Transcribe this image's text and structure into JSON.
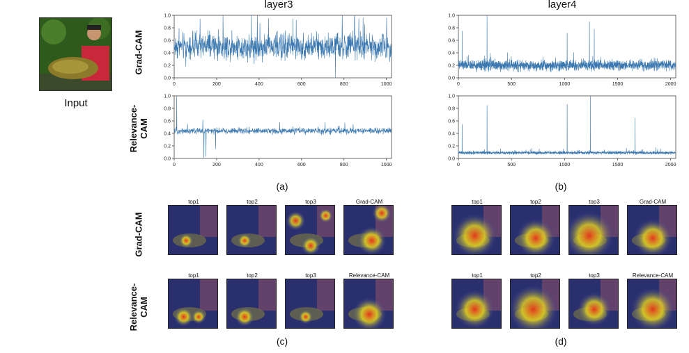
{
  "input": {
    "label": "Input"
  },
  "columns": {
    "layer3": "layer3",
    "layer4": "layer4"
  },
  "rows": {
    "gradcam": "Grad-CAM",
    "relevancecam": "Relevance-\nCAM"
  },
  "subfigures": {
    "a": "(a)",
    "b": "(b)",
    "c": "(c)",
    "d": "(d)"
  },
  "colors": {
    "line": "#3b78b0",
    "axis": "#444444",
    "heat_red": "#e8341a",
    "heat_yellow": "#f4e21d",
    "heat_blue": "#2030a0"
  },
  "chart_data": [
    {
      "id": "gradcam-layer3",
      "type": "line",
      "title": "Grad-CAM layer3",
      "xlabel": "",
      "ylabel": "",
      "xlim": [
        0,
        1024
      ],
      "ylim": [
        0.0,
        1.0
      ],
      "xticks": [
        0,
        200,
        400,
        600,
        800,
        1000
      ],
      "yticks": [
        0.0,
        0.2,
        0.4,
        0.6,
        0.8,
        1.0
      ],
      "n_points": 1024,
      "baseline": 0.5,
      "spread": 0.13,
      "peaks": [
        [
          850,
          1.0
        ],
        [
          870,
          0.95
        ],
        [
          760,
          0.01
        ],
        [
          55,
          0.18
        ]
      ],
      "grid": false
    },
    {
      "id": "gradcam-layer4",
      "type": "line",
      "title": "Grad-CAM layer4",
      "xlabel": "",
      "ylabel": "",
      "xlim": [
        0,
        2048
      ],
      "ylim": [
        0.0,
        1.0
      ],
      "xticks": [
        0,
        500,
        1000,
        1500,
        2000
      ],
      "yticks": [
        0.0,
        0.2,
        0.4,
        0.6,
        0.8,
        1.0
      ],
      "n_points": 2048,
      "baseline": 0.2,
      "spread": 0.05,
      "peaks": [
        [
          270,
          1.0
        ],
        [
          1235,
          0.9
        ],
        [
          1280,
          0.78
        ],
        [
          1025,
          0.72
        ],
        [
          35,
          0.75
        ]
      ],
      "grid": false
    },
    {
      "id": "relevancecam-layer3",
      "type": "line",
      "title": "Relevance-CAM layer3",
      "xlabel": "",
      "ylabel": "",
      "xlim": [
        0,
        1024
      ],
      "ylim": [
        0.0,
        1.0
      ],
      "xticks": [
        0,
        200,
        400,
        600,
        800,
        1000
      ],
      "yticks": [
        0.0,
        0.2,
        0.4,
        0.6,
        0.8,
        1.0
      ],
      "n_points": 1024,
      "baseline": 0.44,
      "spread": 0.03,
      "peaks": [
        [
          12,
          1.0
        ],
        [
          140,
          0.01
        ],
        [
          150,
          0.03
        ],
        [
          195,
          0.15
        ],
        [
          135,
          0.62
        ]
      ],
      "grid": false
    },
    {
      "id": "relevancecam-layer4",
      "type": "line",
      "title": "Relevance-CAM layer4",
      "xlabel": "",
      "ylabel": "",
      "xlim": [
        0,
        2048
      ],
      "ylim": [
        0.0,
        1.0
      ],
      "xticks": [
        0,
        500,
        1000,
        1500,
        2000
      ],
      "yticks": [
        0.0,
        0.2,
        0.4,
        0.6,
        0.8,
        1.0
      ],
      "n_points": 2048,
      "baseline": 0.09,
      "spread": 0.015,
      "peaks": [
        [
          1245,
          1.0
        ],
        [
          1025,
          0.87
        ],
        [
          270,
          0.85
        ],
        [
          1665,
          0.65
        ],
        [
          35,
          0.55
        ]
      ],
      "grid": false
    }
  ],
  "heatmaps": {
    "c_grad": [
      {
        "title": "top1",
        "hot": [
          [
            0.35,
            0.7,
            0.15
          ]
        ]
      },
      {
        "title": "top2",
        "hot": [
          [
            0.35,
            0.7,
            0.15
          ]
        ]
      },
      {
        "title": "top3",
        "hot": [
          [
            0.2,
            0.3,
            0.2
          ],
          [
            0.8,
            0.2,
            0.15
          ],
          [
            0.5,
            0.8,
            0.2
          ]
        ]
      },
      {
        "title": "Grad-CAM",
        "hot": [
          [
            0.55,
            0.7,
            0.3
          ],
          [
            0.75,
            0.15,
            0.2
          ]
        ]
      }
    ],
    "c_rel": [
      {
        "title": "top1",
        "hot": [
          [
            0.3,
            0.75,
            0.2
          ],
          [
            0.6,
            0.75,
            0.15
          ]
        ]
      },
      {
        "title": "top2",
        "hot": [
          [
            0.35,
            0.75,
            0.2
          ]
        ]
      },
      {
        "title": "top3",
        "hot": [
          [
            0.4,
            0.75,
            0.15
          ]
        ]
      },
      {
        "title": "Relevance-CAM",
        "hot": [
          [
            0.5,
            0.7,
            0.35
          ]
        ]
      }
    ],
    "d_grad": [
      {
        "title": "top1",
        "hot": [
          [
            0.45,
            0.6,
            0.45
          ]
        ]
      },
      {
        "title": "top2",
        "hot": [
          [
            0.5,
            0.65,
            0.4
          ]
        ]
      },
      {
        "title": "top3",
        "hot": [
          [
            0.4,
            0.6,
            0.5
          ]
        ]
      },
      {
        "title": "Grad-CAM",
        "hot": [
          [
            0.5,
            0.65,
            0.4
          ]
        ]
      }
    ],
    "d_rel": [
      {
        "title": "top1",
        "hot": [
          [
            0.45,
            0.6,
            0.4
          ]
        ]
      },
      {
        "title": "top2",
        "hot": [
          [
            0.45,
            0.6,
            0.5
          ]
        ]
      },
      {
        "title": "top3",
        "hot": [
          [
            0.5,
            0.6,
            0.35
          ]
        ]
      },
      {
        "title": "Relevance-CAM",
        "hot": [
          [
            0.5,
            0.6,
            0.45
          ]
        ]
      }
    ]
  }
}
